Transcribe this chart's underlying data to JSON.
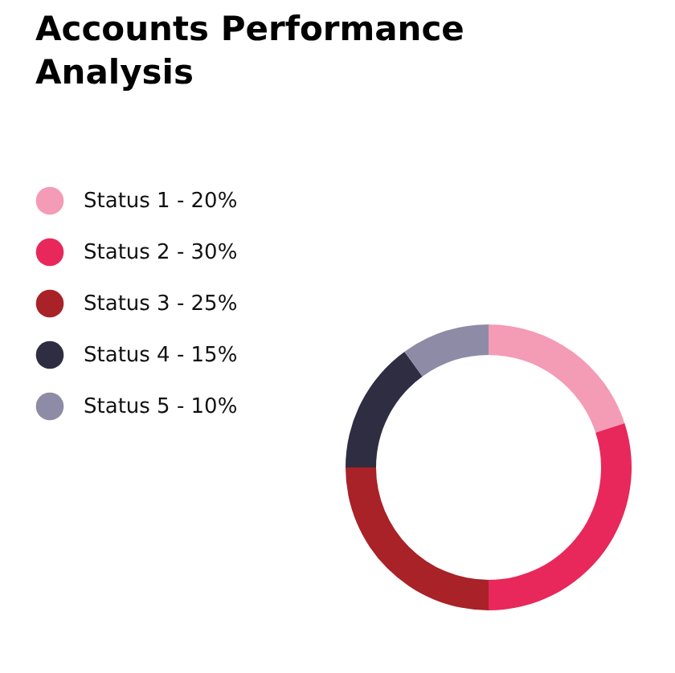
{
  "chart_data": {
    "type": "donut",
    "title": "Accounts Performance Analysis",
    "categories": [
      "Status 1 - 20%",
      "Status 2 - 30%",
      "Status 3 - 25%",
      "Status 4 - 15%",
      "Status 5 - 10%"
    ],
    "values": [
      20,
      30,
      25,
      15,
      10
    ],
    "colors": [
      "#f49bb6",
      "#e8285a",
      "#a82228",
      "#2e2d42",
      "#8e8ba6"
    ],
    "legend": "left"
  }
}
